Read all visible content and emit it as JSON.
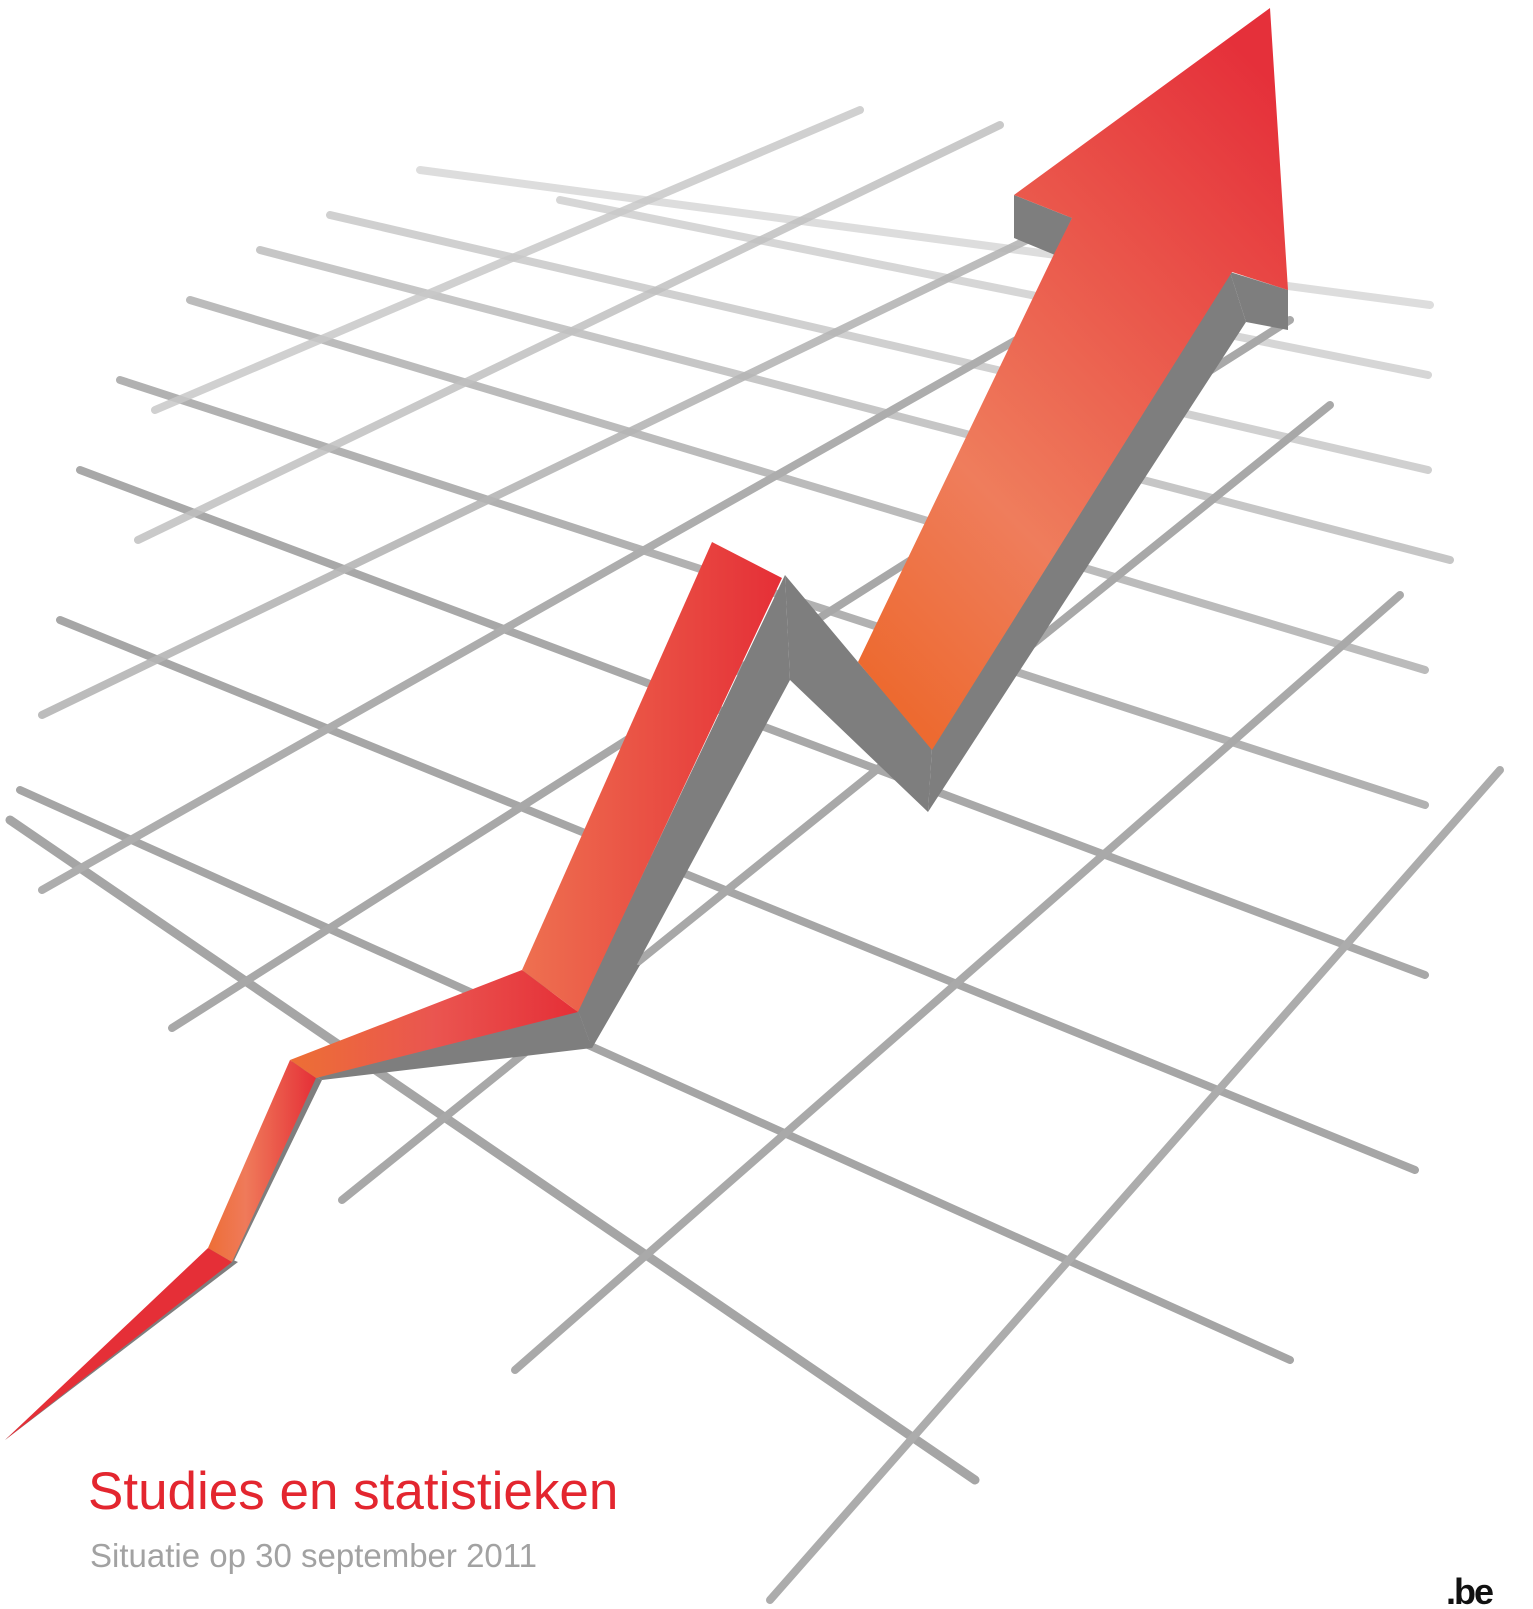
{
  "cover": {
    "title": "Studies en statistieken",
    "subtitle": "Situatie op 30 september 2011",
    "logo_text": ".be"
  },
  "colors": {
    "title": "#e3262f",
    "subtitle": "#a2a2a2",
    "arrow_red": "#e52e36",
    "arrow_orange": "#ed6d33",
    "arrow_shadow": "#7d7d7d",
    "grid": "#a8a8a8"
  },
  "illustration": {
    "name": "rising-arrow-on-grid"
  }
}
